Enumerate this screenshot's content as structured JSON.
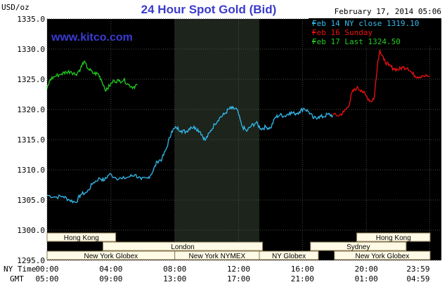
{
  "chart_data": {
    "type": "line",
    "title": "24 Hour Spot Gold (Bid)",
    "site": "www.kitco.com",
    "timestamp": "February 17, 2014 05:06",
    "y_unit": "USD/oz",
    "ylim": [
      1295.0,
      1335.0
    ],
    "y_ticks": [
      "1335.0",
      "1330.0",
      "1325.0",
      "1320.0",
      "1315.0",
      "1310.0",
      "1305.0",
      "1300.0",
      "1295.0"
    ],
    "x_row_labels": [
      "NY Time",
      "GMT"
    ],
    "x_ticks_ny": [
      "00:00",
      "04:00",
      "08:00",
      "12:00",
      "16:00",
      "20:00",
      "23:59"
    ],
    "x_ticks_gmt": [
      "05:00",
      "09:00",
      "13:00",
      "17:00",
      "21:00",
      "01:00",
      "04:59"
    ],
    "legend_position": "top-right",
    "highlight_region_hours": [
      8.0,
      13.3
    ],
    "series": [
      {
        "name": "Feb 14 NY close 1319.10",
        "color": "#33bbee",
        "points": [
          [
            0,
            1305.8
          ],
          [
            0.5,
            1305.5
          ],
          [
            1,
            1305.6
          ],
          [
            1.4,
            1305.0
          ],
          [
            1.8,
            1304.6
          ],
          [
            2.1,
            1305.9
          ],
          [
            2.5,
            1306.3
          ],
          [
            2.9,
            1307.9
          ],
          [
            3.3,
            1308.6
          ],
          [
            3.6,
            1308.3
          ],
          [
            3.9,
            1309.3
          ],
          [
            4.3,
            1308.7
          ],
          [
            4.7,
            1308.5
          ],
          [
            5.2,
            1308.9
          ],
          [
            5.5,
            1309.2
          ],
          [
            5.9,
            1308.4
          ],
          [
            6.3,
            1308.6
          ],
          [
            6.6,
            1309.6
          ],
          [
            6.9,
            1311.4
          ],
          [
            7.2,
            1311.8
          ],
          [
            7.5,
            1313.7
          ],
          [
            7.8,
            1316.4
          ],
          [
            8.1,
            1317.0
          ],
          [
            8.4,
            1316.5
          ],
          [
            8.7,
            1316.3
          ],
          [
            9.0,
            1317.1
          ],
          [
            9.3,
            1317.0
          ],
          [
            9.6,
            1316.3
          ],
          [
            9.9,
            1314.9
          ],
          [
            10.2,
            1316.2
          ],
          [
            10.5,
            1317.6
          ],
          [
            10.8,
            1318.6
          ],
          [
            11.1,
            1319.2
          ],
          [
            11.4,
            1320.1
          ],
          [
            11.6,
            1320.2
          ],
          [
            11.9,
            1320.0
          ],
          [
            12.2,
            1317.3
          ],
          [
            12.5,
            1316.4
          ],
          [
            12.8,
            1317.3
          ],
          [
            13.1,
            1317.8
          ],
          [
            13.4,
            1316.8
          ],
          [
            13.7,
            1317.1
          ],
          [
            14.0,
            1316.9
          ],
          [
            14.3,
            1318.7
          ],
          [
            14.6,
            1319.1
          ],
          [
            14.9,
            1318.9
          ],
          [
            15.2,
            1319.5
          ],
          [
            15.5,
            1319.3
          ],
          [
            15.8,
            1319.6
          ],
          [
            16.1,
            1320.2
          ],
          [
            16.4,
            1319.6
          ],
          [
            16.7,
            1318.5
          ],
          [
            17.0,
            1318.8
          ],
          [
            17.3,
            1318.8
          ],
          [
            17.6,
            1319.2
          ],
          [
            17.9,
            1319.0
          ]
        ]
      },
      {
        "name": "Feb 16 Sunday",
        "color": "#ee1111",
        "points": [
          [
            17.9,
            1319.1
          ],
          [
            18.3,
            1319.0
          ],
          [
            18.6,
            1319.6
          ],
          [
            18.9,
            1320.6
          ],
          [
            19.1,
            1322.8
          ],
          [
            19.4,
            1323.6
          ],
          [
            19.7,
            1323.2
          ],
          [
            20.0,
            1322.2
          ],
          [
            20.3,
            1321.3
          ],
          [
            20.5,
            1322.0
          ],
          [
            20.7,
            1327.5
          ],
          [
            20.85,
            1329.9
          ],
          [
            21.1,
            1328.2
          ],
          [
            21.4,
            1327.3
          ],
          [
            21.7,
            1326.8
          ],
          [
            22.0,
            1326.6
          ],
          [
            22.3,
            1327.0
          ],
          [
            22.6,
            1326.9
          ],
          [
            22.9,
            1325.9
          ],
          [
            23.2,
            1325.4
          ],
          [
            23.5,
            1325.6
          ],
          [
            23.98,
            1325.5
          ]
        ]
      },
      {
        "name": "Feb 17 Last 1324.50",
        "color": "#22cc22",
        "points": [
          [
            0,
            1323.4
          ],
          [
            0.2,
            1325.0
          ],
          [
            0.5,
            1325.5
          ],
          [
            0.9,
            1325.9
          ],
          [
            1.2,
            1326.2
          ],
          [
            1.5,
            1326.3
          ],
          [
            1.8,
            1325.8
          ],
          [
            2.1,
            1326.8
          ],
          [
            2.3,
            1327.9
          ],
          [
            2.6,
            1326.7
          ],
          [
            2.9,
            1326.0
          ],
          [
            3.2,
            1325.9
          ],
          [
            3.4,
            1324.9
          ],
          [
            3.7,
            1323.1
          ],
          [
            3.9,
            1323.9
          ],
          [
            4.2,
            1324.8
          ],
          [
            4.5,
            1324.7
          ],
          [
            4.8,
            1324.9
          ],
          [
            5.1,
            1324.1
          ],
          [
            5.4,
            1323.7
          ],
          [
            5.65,
            1324.1
          ]
        ]
      }
    ],
    "sessions": [
      {
        "label": "Hong Kong",
        "row": 0,
        "start": 0,
        "end": 4.3
      },
      {
        "label": "London",
        "row": 1,
        "start": 3.5,
        "end": 13.5
      },
      {
        "label": "New York Globex",
        "row": 2,
        "start": 0,
        "end": 8.0
      },
      {
        "label": "New York NYMEX",
        "row": 2,
        "start": 8.0,
        "end": 13.3
      },
      {
        "label": "NY Globex",
        "row": 2,
        "start": 13.3,
        "end": 17.0
      },
      {
        "label": "Hong Kong",
        "row": 0,
        "start": 19.4,
        "end": 24
      },
      {
        "label": "Sydney",
        "row": 1,
        "start": 16.5,
        "end": 22.5
      },
      {
        "label": "New York Globex",
        "row": 2,
        "start": 18.0,
        "end": 24
      }
    ]
  }
}
